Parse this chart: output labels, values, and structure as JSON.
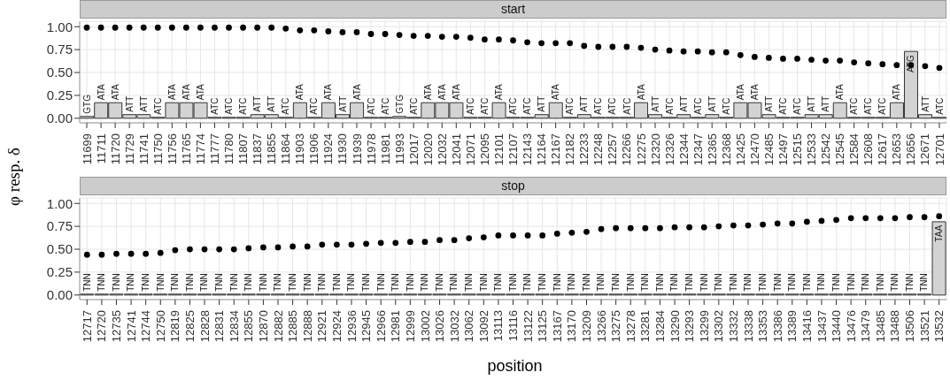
{
  "chart_data": [
    {
      "type": "bar",
      "title": "start",
      "ylabel": "φ resp. δ",
      "grid": true,
      "marker": "circle",
      "ylim": [
        -0.05,
        1.06
      ],
      "yticks": [
        {
          "value": 0,
          "label": "0.00"
        },
        {
          "value": 0.25,
          "label": "0.25"
        },
        {
          "value": 0.5,
          "label": "0.50"
        },
        {
          "value": 0.75,
          "label": "0.75"
        },
        {
          "value": 1,
          "label": "1.00"
        }
      ],
      "categories": [
        "11699",
        "11711",
        "11720",
        "11729",
        "11741",
        "11750",
        "11756",
        "11765",
        "11774",
        "11777",
        "11780",
        "11807",
        "11837",
        "11855",
        "11864",
        "11903",
        "11906",
        "11924",
        "11930",
        "11939",
        "11978",
        "11981",
        "11993",
        "12017",
        "12020",
        "12032",
        "12041",
        "12071",
        "12095",
        "12101",
        "12107",
        "12143",
        "12164",
        "12167",
        "12182",
        "12233",
        "12248",
        "12257",
        "12266",
        "12275",
        "12320",
        "12326",
        "12344",
        "12347",
        "12365",
        "12368",
        "12425",
        "12470",
        "12485",
        "12497",
        "12515",
        "12533",
        "12542",
        "12545",
        "12584",
        "12608",
        "12617",
        "12653",
        "12656",
        "12671",
        "12701"
      ],
      "series": [
        {
          "type": "bar",
          "color": "#d3d3d3",
          "values": [
            0.02,
            0.17,
            0.17,
            0.04,
            0.04,
            0.01,
            0.17,
            0.17,
            0.17,
            0.01,
            0.01,
            0.01,
            0.04,
            0.04,
            0.01,
            0.17,
            0.01,
            0.17,
            0.04,
            0.17,
            0.01,
            0.01,
            0.02,
            0.01,
            0.17,
            0.17,
            0.17,
            0.01,
            0.01,
            0.17,
            0.01,
            0.01,
            0.04,
            0.17,
            0.01,
            0.04,
            0.01,
            0.01,
            0.01,
            0.17,
            0.04,
            0.01,
            0.04,
            0.01,
            0.04,
            0.01,
            0.17,
            0.17,
            0.04,
            0.01,
            0.01,
            0.04,
            0.04,
            0.17,
            0.01,
            0.01,
            0.01,
            0.17,
            0.73,
            0.04,
            0.01
          ],
          "value_labels": [
            "GTG",
            "ATA",
            "ATA",
            "ATT",
            "ATT",
            "ATC",
            "ATA",
            "ATA",
            "ATA",
            "ATC",
            "ATC",
            "ATC",
            "ATT",
            "ATT",
            "ATC",
            "ATA",
            "ATC",
            "ATA",
            "ATT",
            "ATA",
            "ATC",
            "ATC",
            "GTG",
            "ATC",
            "ATA",
            "ATA",
            "ATA",
            "ATC",
            "ATC",
            "ATA",
            "ATC",
            "ATC",
            "ATT",
            "ATA",
            "ATC",
            "ATT",
            "ATC",
            "ATC",
            "ATC",
            "ATA",
            "ATT",
            "ATC",
            "ATT",
            "ATC",
            "ATT",
            "ATC",
            "ATA",
            "ATA",
            "ATT",
            "ATC",
            "ATC",
            "ATT",
            "ATT",
            "ATA",
            "ATC",
            "ATC",
            "ATC",
            "ATA",
            "ATG",
            "ATT",
            "ATC"
          ]
        },
        {
          "type": "scatter",
          "color": "#000000",
          "x": [
            "11699",
            "11711",
            "11720",
            "11729",
            "11741",
            "11750",
            "11756",
            "11765",
            "11774",
            "11777",
            "11780",
            "11807",
            "11837",
            "11855",
            "11864",
            "11903",
            "11906",
            "11924",
            "11930",
            "11939",
            "11978",
            "11981",
            "11993",
            "12017",
            "12020",
            "12032",
            "12041",
            "12071",
            "12095",
            "12101",
            "12107",
            "12143",
            "12164",
            "12167",
            "12182",
            "12233",
            "12248",
            "12257",
            "12266",
            "12275",
            "12320",
            "12326",
            "12344",
            "12347",
            "12365",
            "12368",
            "12425",
            "12470",
            "12485",
            "12497",
            "12515",
            "12533",
            "12542",
            "12545",
            "12584",
            "12608",
            "12617",
            "12653",
            "12656",
            "12671",
            "12701"
          ],
          "values": [
            0.99,
            0.99,
            0.99,
            0.99,
            0.99,
            0.99,
            0.99,
            0.99,
            0.99,
            0.99,
            0.99,
            0.99,
            0.99,
            0.99,
            0.98,
            0.96,
            0.96,
            0.95,
            0.94,
            0.94,
            0.92,
            0.92,
            0.91,
            0.9,
            0.9,
            0.89,
            0.89,
            0.88,
            0.86,
            0.86,
            0.85,
            0.83,
            0.82,
            0.82,
            0.82,
            0.79,
            0.78,
            0.78,
            0.78,
            0.77,
            0.75,
            0.74,
            0.73,
            0.73,
            0.72,
            0.72,
            0.69,
            0.67,
            0.66,
            0.65,
            0.65,
            0.64,
            0.63,
            0.63,
            0.61,
            0.6,
            0.59,
            0.58,
            0.58,
            0.57,
            0.55
          ]
        }
      ]
    },
    {
      "type": "bar",
      "title": "stop",
      "xlabel": "position",
      "grid": true,
      "marker": "circle",
      "ylim": [
        -0.05,
        1.06
      ],
      "yticks": [
        {
          "value": 0,
          "label": "0.00"
        },
        {
          "value": 0.25,
          "label": "0.25"
        },
        {
          "value": 0.5,
          "label": "0.50"
        },
        {
          "value": 0.75,
          "label": "0.75"
        },
        {
          "value": 1,
          "label": "1.00"
        }
      ],
      "categories": [
        "12717",
        "12720",
        "12735",
        "12741",
        "12744",
        "12750",
        "12819",
        "12825",
        "12828",
        "12831",
        "12834",
        "12855",
        "12870",
        "12882",
        "12885",
        "12888",
        "12921",
        "12924",
        "12936",
        "12945",
        "12966",
        "12981",
        "12999",
        "13002",
        "13026",
        "13032",
        "13062",
        "13092",
        "13113",
        "13116",
        "13122",
        "13125",
        "13167",
        "13170",
        "13209",
        "13266",
        "13275",
        "13278",
        "13281",
        "13284",
        "13290",
        "13293",
        "13299",
        "13302",
        "13332",
        "13338",
        "13353",
        "13386",
        "13389",
        "13416",
        "13437",
        "13440",
        "13476",
        "13479",
        "13485",
        "13488",
        "13506",
        "13521",
        "13532"
      ],
      "series": [
        {
          "type": "bar",
          "color": "#d3d3d3",
          "values": [
            0,
            0,
            0,
            0,
            0,
            0,
            0,
            0,
            0,
            0,
            0,
            0,
            0,
            0,
            0,
            0,
            0,
            0,
            0,
            0,
            0,
            0,
            0,
            0,
            0,
            0,
            0,
            0,
            0,
            0,
            0,
            0,
            0,
            0,
            0,
            0,
            0,
            0,
            0,
            0,
            0,
            0,
            0,
            0,
            0,
            0,
            0,
            0,
            0,
            0,
            0,
            0,
            0,
            0,
            0,
            0,
            0,
            0,
            0.8
          ],
          "value_labels": [
            "TNN",
            "TNN",
            "TNN",
            "TNN",
            "TNN",
            "TNN",
            "TNN",
            "TNN",
            "TNN",
            "TNN",
            "TNN",
            "TNN",
            "TNN",
            "TNN",
            "TNN",
            "TNN",
            "TNN",
            "TNN",
            "TNN",
            "TNN",
            "TNN",
            "TNN",
            "TNN",
            "TNN",
            "TNN",
            "TNN",
            "TNN",
            "TNN",
            "TNN",
            "TNN",
            "TNN",
            "TNN",
            "TNN",
            "TNN",
            "TNN",
            "TNN",
            "TNN",
            "TNN",
            "TNN",
            "TNN",
            "TNN",
            "TNN",
            "TNN",
            "TNN",
            "TNN",
            "TNN",
            "TNN",
            "TNN",
            "TNN",
            "TNN",
            "TNN",
            "TNN",
            "TNN",
            "TNN",
            "TNN",
            "TNN",
            "TNN",
            "TNN",
            "TAA"
          ]
        },
        {
          "type": "scatter",
          "color": "#000000",
          "x": [
            "12717",
            "12720",
            "12735",
            "12741",
            "12744",
            "12750",
            "12819",
            "12825",
            "12828",
            "12831",
            "12834",
            "12855",
            "12870",
            "12882",
            "12885",
            "12888",
            "12921",
            "12924",
            "12936",
            "12945",
            "12966",
            "12981",
            "12999",
            "13002",
            "13026",
            "13032",
            "13062",
            "13092",
            "13113",
            "13116",
            "13122",
            "13125",
            "13167",
            "13170",
            "13209",
            "13266",
            "13275",
            "13278",
            "13281",
            "13284",
            "13290",
            "13293",
            "13299",
            "13302",
            "13332",
            "13338",
            "13353",
            "13386",
            "13389",
            "13416",
            "13437",
            "13440",
            "13476",
            "13479",
            "13485",
            "13488",
            "13506",
            "13521",
            "13532"
          ],
          "values": [
            0.44,
            0.44,
            0.45,
            0.45,
            0.45,
            0.46,
            0.49,
            0.5,
            0.5,
            0.5,
            0.5,
            0.51,
            0.52,
            0.52,
            0.53,
            0.53,
            0.55,
            0.55,
            0.55,
            0.56,
            0.57,
            0.57,
            0.58,
            0.58,
            0.6,
            0.6,
            0.62,
            0.63,
            0.65,
            0.65,
            0.65,
            0.65,
            0.67,
            0.68,
            0.69,
            0.72,
            0.73,
            0.73,
            0.73,
            0.73,
            0.74,
            0.74,
            0.74,
            0.75,
            0.76,
            0.76,
            0.77,
            0.78,
            0.78,
            0.8,
            0.81,
            0.82,
            0.84,
            0.84,
            0.84,
            0.84,
            0.85,
            0.85,
            0.86
          ]
        }
      ]
    }
  ]
}
